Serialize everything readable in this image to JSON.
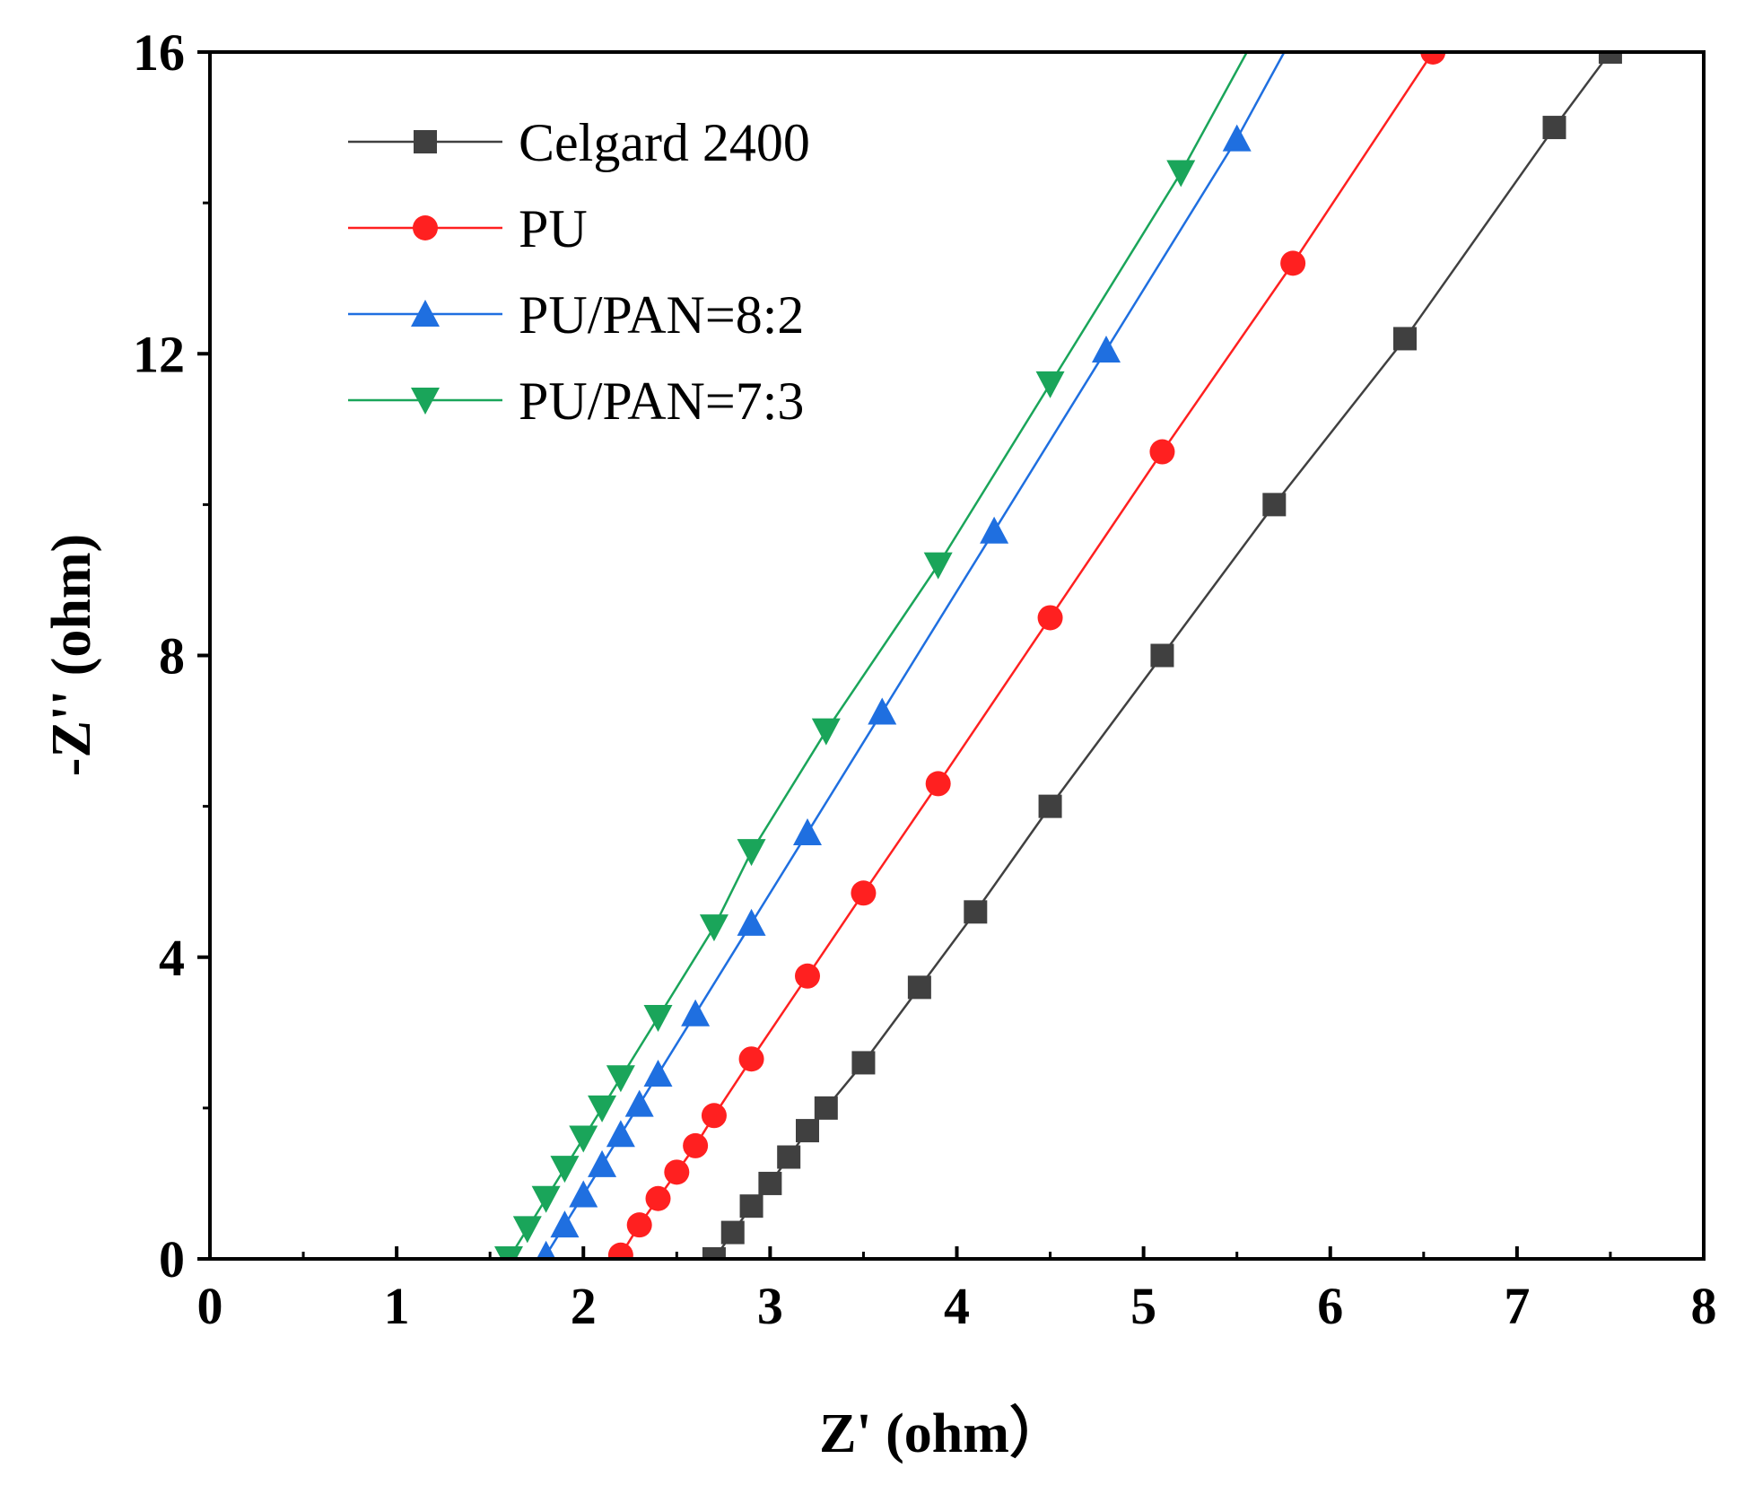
{
  "chart_data": {
    "type": "line",
    "title": "",
    "xlabel": "Z' (ohm）",
    "ylabel": "-Z'' (ohm)",
    "xlim": [
      0,
      8
    ],
    "ylim": [
      0,
      16
    ],
    "x_ticks": [
      "0",
      "1",
      "2",
      "3",
      "4",
      "5",
      "6",
      "7",
      "8"
    ],
    "y_ticks": [
      "0",
      "4",
      "8",
      "12",
      "16"
    ],
    "grid": false,
    "legend_position": "top-left",
    "series": [
      {
        "name": "Celgard 2400",
        "color": "#404040",
        "marker": "square",
        "x": [
          2.7,
          2.8,
          2.9,
          3.0,
          3.1,
          3.2,
          3.3,
          3.5,
          3.8,
          4.1,
          4.5,
          5.1,
          5.7,
          6.4,
          7.2,
          7.5
        ],
        "y": [
          0.0,
          0.35,
          0.7,
          1.0,
          1.35,
          1.7,
          2.0,
          2.6,
          3.6,
          4.6,
          6.0,
          8.0,
          10.0,
          12.2,
          15.0,
          16.0
        ]
      },
      {
        "name": "PU",
        "color": "#ff2020",
        "marker": "circle",
        "x": [
          2.2,
          2.3,
          2.4,
          2.5,
          2.6,
          2.7,
          2.9,
          3.2,
          3.5,
          3.9,
          4.5,
          5.1,
          5.8,
          6.55
        ],
        "y": [
          0.05,
          0.45,
          0.8,
          1.15,
          1.5,
          1.9,
          2.65,
          3.75,
          4.85,
          6.3,
          8.5,
          10.7,
          13.2,
          16.0
        ]
      },
      {
        "name": "PU/PAN=8:2",
        "color": "#1f6fe0",
        "marker": "triangle-up",
        "x": [
          1.8,
          1.9,
          2.0,
          2.1,
          2.2,
          2.3,
          2.4,
          2.6,
          2.9,
          3.2,
          3.6,
          4.2,
          4.8,
          5.5
        ],
        "y": [
          0.05,
          0.45,
          0.85,
          1.25,
          1.65,
          2.05,
          2.45,
          3.25,
          4.45,
          5.65,
          7.25,
          9.65,
          12.05,
          14.85
        ]
      },
      {
        "name": "PU/PAN=7:3",
        "color": "#1aa55a",
        "marker": "triangle-down",
        "x": [
          1.6,
          1.7,
          1.8,
          1.9,
          2.0,
          2.1,
          2.2,
          2.4,
          2.7,
          2.9,
          3.3,
          3.9,
          4.5,
          5.2
        ],
        "y": [
          0.0,
          0.4,
          0.8,
          1.2,
          1.6,
          2.0,
          2.4,
          3.2,
          4.4,
          5.4,
          7.0,
          9.2,
          11.6,
          14.4
        ]
      }
    ],
    "line_extension_to": [
      {
        "x": 7.6,
        "y": 16.3
      },
      {
        "x": 6.62,
        "y": 16.3
      },
      {
        "x": 5.82,
        "y": 16.3
      },
      {
        "x": 5.62,
        "y": 16.3
      }
    ]
  }
}
